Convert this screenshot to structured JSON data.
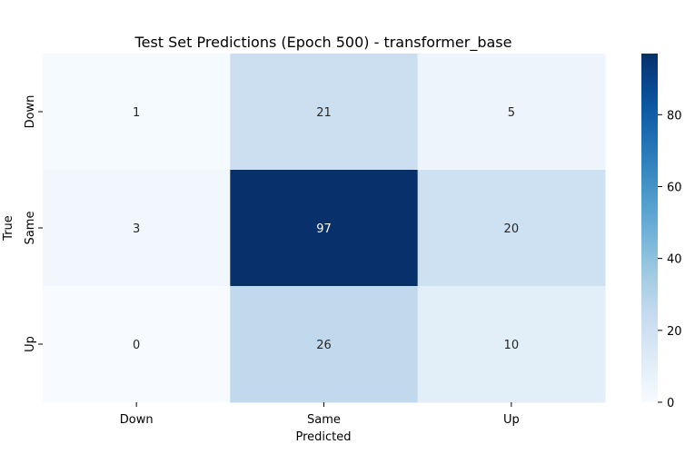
{
  "chart_data": {
    "type": "heatmap",
    "title": "Test Set Predictions (Epoch 500) - transformer_base",
    "xlabel": "Predicted",
    "ylabel": "True",
    "x_categories": [
      "Down",
      "Same",
      "Up"
    ],
    "y_categories": [
      "Down",
      "Same",
      "Up"
    ],
    "values": [
      [
        1,
        21,
        5
      ],
      [
        3,
        97,
        20
      ],
      [
        0,
        26,
        10
      ]
    ],
    "colormap": "Blues",
    "colorbar": {
      "vmin": 0,
      "vmax": 97,
      "ticks": [
        0,
        20,
        40,
        60,
        80
      ]
    }
  }
}
